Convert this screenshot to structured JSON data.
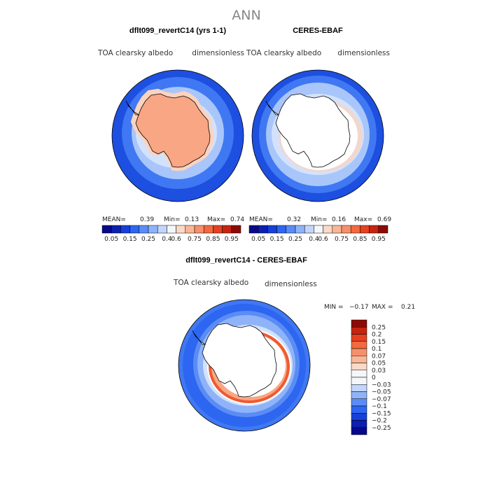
{
  "season": "ANN",
  "panels": [
    {
      "id": "model",
      "title": "dflt099_revertC14 (yrs 1-1)",
      "left_label": "TOA clearsky albedo",
      "right_label": "dimensionless",
      "stats": {
        "mean_label": "MEAN=",
        "mean": "0.39",
        "min_label": "Min=",
        "min": "0.13",
        "max_label": "Max=",
        "max": "0.74"
      }
    },
    {
      "id": "obs",
      "title": "CERES-EBAF",
      "left_label": "TOA clearsky albedo",
      "right_label": "dimensionless",
      "stats": {
        "mean_label": "MEAN=",
        "mean": "0.32",
        "min_label": "Min=",
        "min": "0.16",
        "max_label": "Max=",
        "max": "0.69"
      }
    }
  ],
  "field_colorbar": {
    "ticks": [
      "0.05",
      "0.15",
      "0.25",
      "0.4",
      "0.6",
      "0.75",
      "0.85",
      "0.95"
    ],
    "colors": [
      "#08088a",
      "#0b1fb0",
      "#1640d8",
      "#2d66f0",
      "#5b8cf5",
      "#8fb3f8",
      "#c2d6fb",
      "#f5f6fa",
      "#fbd9c7",
      "#f9b696",
      "#f6906a",
      "#f26a3f",
      "#e54020",
      "#c52410",
      "#8c0a05"
    ]
  },
  "diff": {
    "title": "dflt099_revertC14 - CERES-EBAF",
    "left_label": "TOA clearsky albedo",
    "right_label": "dimensionless",
    "min_label": "MIN =",
    "min": "-0.17",
    "max_label": "MAX =",
    "max": "0.21",
    "colorbar": {
      "ticks": [
        "0.25",
        "0.2",
        "0.15",
        "0.1",
        "0.07",
        "0.05",
        "0.03",
        "0",
        "-0.03",
        "-0.05",
        "-0.07",
        "-0.1",
        "-0.15",
        "-0.2",
        "-0.25"
      ],
      "colors": [
        "#8c0a05",
        "#c52410",
        "#e54020",
        "#f26a3f",
        "#f6906a",
        "#f9b696",
        "#fbd9c7",
        "#f5f6fa",
        "#f5f6fa",
        "#c2d6fb",
        "#8fb3f8",
        "#5b8cf5",
        "#2d66f0",
        "#1640d8",
        "#0b1fb0",
        "#08088a"
      ]
    }
  },
  "colors": {
    "deep_blue": "#1d4fe0",
    "mid_blue": "#3f78f2",
    "light_blue": "#a9c6fa",
    "pale_blue": "#d3e2fc",
    "white": "#ffffff",
    "pale_peach": "#fbd3bf",
    "peach": "#f9a684",
    "orange_red": "#ef5a30",
    "coastline": "#000000"
  }
}
